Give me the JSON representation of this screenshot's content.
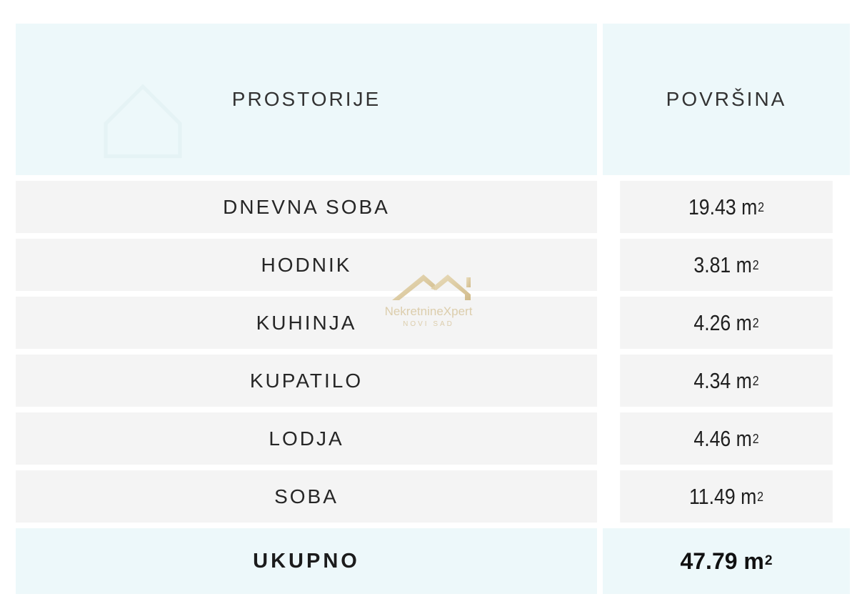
{
  "header": {
    "rooms_label": "PROSTORIJE",
    "area_label": "POVRŠINA"
  },
  "rows": [
    {
      "room": "DNEVNA SOBA",
      "area": "19.43 m",
      "unit_sup": "2"
    },
    {
      "room": "HODNIK",
      "area": "3.81 m",
      "unit_sup": "2"
    },
    {
      "room": "KUHINJA",
      "area": "4.26 m",
      "unit_sup": "2"
    },
    {
      "room": "KUPATILO",
      "area": "4.34 m",
      "unit_sup": "2"
    },
    {
      "room": "LODJA",
      "area": "4.46 m",
      "unit_sup": "2"
    },
    {
      "room": "SOBA",
      "area": "11.49 m",
      "unit_sup": "2"
    }
  ],
  "total": {
    "label": "UKUPNO",
    "area": "47.79 m",
    "unit_sup": "2"
  },
  "watermark": {
    "brand": "NekretnineXpert",
    "city": "NOVI SAD",
    "icon": "house-roof-logo-icon"
  },
  "colors": {
    "header_bg": "#edf8fa",
    "row_bg": "#f4f4f4",
    "watermark": "#d8c7a0"
  }
}
